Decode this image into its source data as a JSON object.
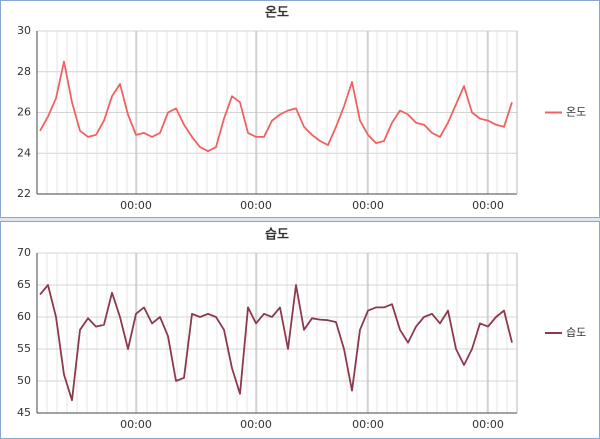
{
  "chart_data": [
    {
      "type": "line",
      "title": "온도",
      "categories": [
        null,
        null,
        null,
        null,
        null,
        null,
        null,
        null,
        null,
        null,
        null,
        null,
        "00:00",
        null,
        null,
        null,
        null,
        null,
        null,
        null,
        null,
        null,
        null,
        null,
        null,
        null,
        null,
        "00:00",
        null,
        null,
        null,
        null,
        null,
        null,
        null,
        null,
        null,
        null,
        null,
        null,
        null,
        "00:00",
        null,
        null,
        null,
        null,
        null,
        null,
        null,
        null,
        null,
        null,
        null,
        null,
        null,
        null,
        "00:00",
        null,
        null,
        null
      ],
      "series": [
        {
          "name": "온도",
          "color": "#f06262",
          "values": [
            25.1,
            25.8,
            26.7,
            28.5,
            26.5,
            25.1,
            24.8,
            24.9,
            25.6,
            26.8,
            27.4,
            25.9,
            24.9,
            25.0,
            24.8,
            25.0,
            26.0,
            26.2,
            25.4,
            24.8,
            24.3,
            24.1,
            24.3,
            25.7,
            26.8,
            26.5,
            25.0,
            24.8,
            24.8,
            25.6,
            25.9,
            26.1,
            26.2,
            25.3,
            24.9,
            24.6,
            24.4,
            25.3,
            26.3,
            27.5,
            25.6,
            24.9,
            24.5,
            24.6,
            25.5,
            26.1,
            25.9,
            25.5,
            25.4,
            25.0,
            24.8,
            25.5,
            26.4,
            27.3,
            26.0,
            25.7,
            25.6,
            25.4,
            25.3,
            26.5
          ]
        }
      ],
      "ylim": [
        22,
        30
      ],
      "yticks": [
        22,
        24,
        26,
        28,
        30
      ],
      "grid": true,
      "legend": "right"
    },
    {
      "type": "line",
      "title": "습도",
      "categories": [
        null,
        null,
        null,
        null,
        null,
        null,
        null,
        null,
        null,
        null,
        null,
        null,
        "00:00",
        null,
        null,
        null,
        null,
        null,
        null,
        null,
        null,
        null,
        null,
        null,
        null,
        null,
        null,
        "00:00",
        null,
        null,
        null,
        null,
        null,
        null,
        null,
        null,
        null,
        null,
        null,
        null,
        null,
        "00:00",
        null,
        null,
        null,
        null,
        null,
        null,
        null,
        null,
        null,
        null,
        null,
        null,
        null,
        null,
        "00:00",
        null,
        null,
        null
      ],
      "series": [
        {
          "name": "습도",
          "color": "#8b3a4c",
          "values": [
            63.5,
            65,
            60,
            51,
            47,
            58,
            59.8,
            58.5,
            58.8,
            63.8,
            60,
            55,
            60.5,
            61.5,
            59,
            60,
            57,
            50,
            50.5,
            60.5,
            60,
            60.5,
            60,
            58,
            52,
            48,
            61.5,
            59,
            60.5,
            60,
            61.5,
            55,
            65,
            58,
            59.8,
            59.6,
            59.5,
            59.2,
            55,
            48.5,
            58,
            61,
            61.5,
            61.5,
            62,
            58,
            56,
            58.5,
            60,
            60.5,
            59,
            61,
            55,
            52.5,
            55,
            59,
            58.5,
            60,
            61,
            56
          ]
        }
      ],
      "ylim": [
        45,
        70
      ],
      "yticks": [
        45,
        50,
        55,
        60,
        65,
        70
      ],
      "grid": true,
      "legend": "right"
    }
  ]
}
